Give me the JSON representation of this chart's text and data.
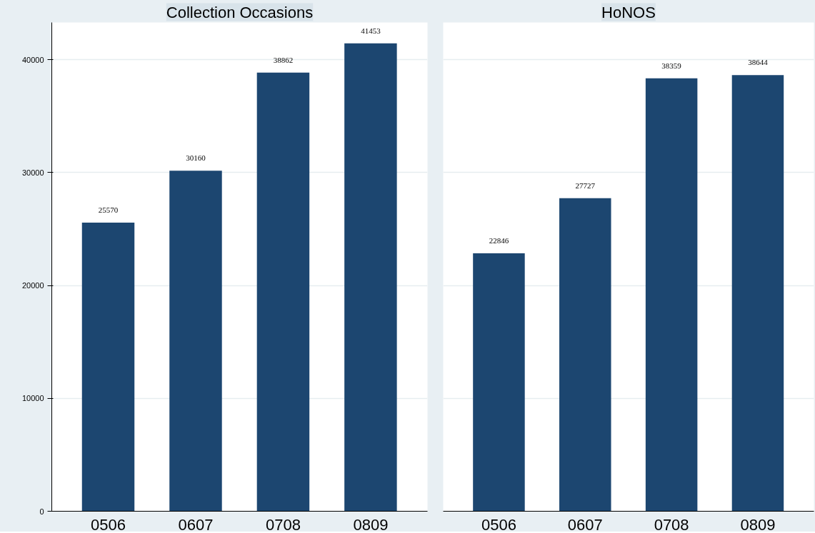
{
  "chart_data": [
    {
      "type": "bar",
      "title": "Collection Occasions",
      "categories": [
        "0506",
        "0607",
        "0708",
        "0809"
      ],
      "values": [
        25570,
        30160,
        38862,
        41453
      ],
      "color": "#1c4670",
      "ylim": [
        0,
        43300
      ],
      "yticks": [
        0,
        10000,
        20000,
        30000,
        40000
      ],
      "grid": "y",
      "data_labels": true
    },
    {
      "type": "bar",
      "title": "HoNOS",
      "categories": [
        "0506",
        "0607",
        "0708",
        "0809"
      ],
      "values": [
        22846,
        27727,
        38359,
        38644
      ],
      "color": "#1c4670",
      "ylim": [
        0,
        43300
      ],
      "yticks": [
        0,
        10000,
        20000,
        30000,
        40000
      ],
      "grid": "y",
      "data_labels": true,
      "tick_labels": "x"
    }
  ]
}
